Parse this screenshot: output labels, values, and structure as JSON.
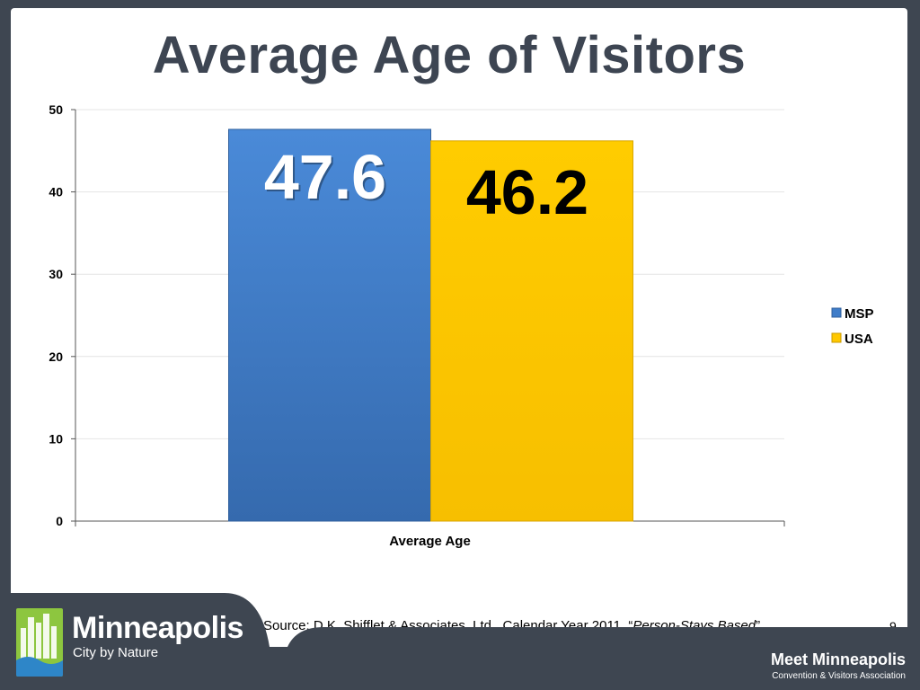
{
  "slide": {
    "title": "Average Age of Visitors",
    "source_prefix": "Source: D.K. Shifflet & Associates, Ltd., Calendar Year 2011, “",
    "source_italic": "Person-Stays Based",
    "source_suffix": "”",
    "page_number": "9"
  },
  "branding": {
    "city_name": "Minneapolis",
    "tagline": "City by Nature",
    "org_name": "Meet Minneapolis",
    "org_sub": "Convention & Visitors Association"
  },
  "colors": {
    "msp": "#3f7dc9",
    "usa": "#ffc800",
    "footer": "#3e4651",
    "logo": "#8dc63f"
  },
  "chart_data": {
    "type": "bar",
    "categories": [
      "Average Age"
    ],
    "series": [
      {
        "name": "MSP",
        "values": [
          47.6
        ],
        "color": "#3f7dc9",
        "label": "47.6"
      },
      {
        "name": "USA",
        "values": [
          46.2
        ],
        "color": "#ffc800",
        "label": "46.2"
      }
    ],
    "ylim": [
      0,
      50
    ],
    "yticks": [
      "0",
      "10",
      "20",
      "30",
      "40",
      "50"
    ],
    "grid": true,
    "legend": "right"
  }
}
